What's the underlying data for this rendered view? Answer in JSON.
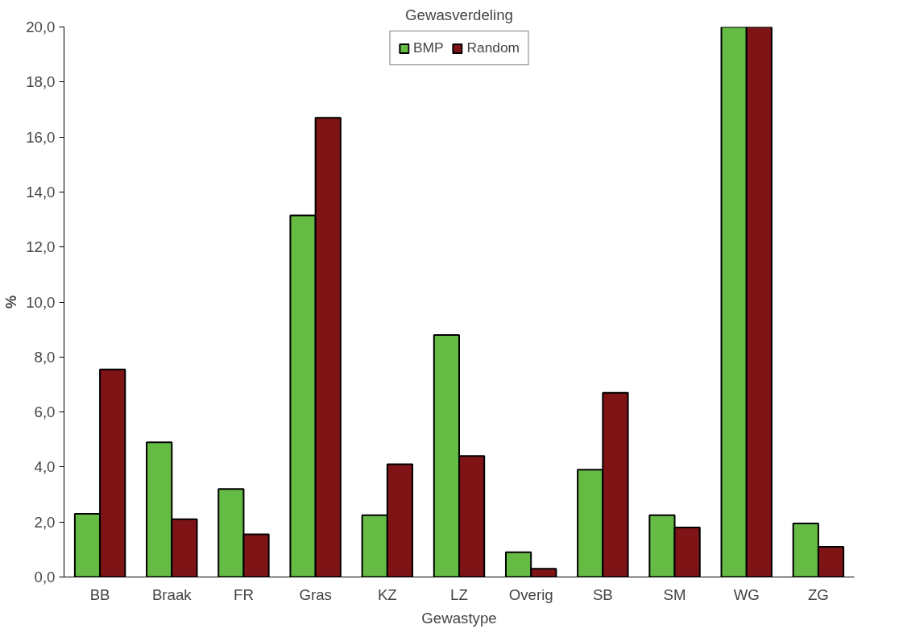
{
  "chart_data": {
    "type": "bar",
    "title": "Gewasverdeling",
    "xlabel": "Gewastype",
    "ylabel": "%",
    "categories": [
      "BB",
      "Braak",
      "FR",
      "Gras",
      "KZ",
      "LZ",
      "Overig",
      "SB",
      "SM",
      "WG",
      "ZG"
    ],
    "series": [
      {
        "name": "BMP",
        "color": "#66bb44",
        "values": [
          2.3,
          4.9,
          3.2,
          13.15,
          2.25,
          8.8,
          0.9,
          3.9,
          2.25,
          20,
          1.95
        ]
      },
      {
        "name": "Random",
        "color": "#7f1416",
        "values": [
          7.55,
          2.1,
          1.55,
          16.7,
          4.1,
          4.4,
          0.3,
          6.7,
          1.8,
          20,
          1.1
        ]
      }
    ],
    "ylim": [
      0,
      20
    ],
    "yticks": [
      {
        "value": 0,
        "label": "0,0"
      },
      {
        "value": 2,
        "label": "2,0"
      },
      {
        "value": 4,
        "label": "4,0"
      },
      {
        "value": 6,
        "label": "6,0"
      },
      {
        "value": 8,
        "label": "8,0"
      },
      {
        "value": 10,
        "label": "10,0"
      },
      {
        "value": 12,
        "label": "12,0"
      },
      {
        "value": 14,
        "label": "14,0"
      },
      {
        "value": 16,
        "label": "16,0"
      },
      {
        "value": 18,
        "label": "18,0"
      },
      {
        "value": 20,
        "label": "20,0"
      }
    ],
    "grid": false,
    "legend": "top"
  }
}
